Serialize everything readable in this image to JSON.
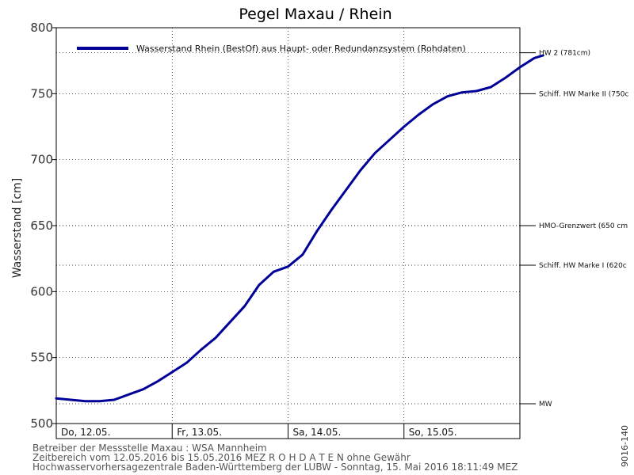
{
  "chart_data": {
    "type": "line",
    "title": "Pegel Maxau / Rhein",
    "ylabel": "Wasserstand [cm]",
    "xlabel": "",
    "ylim": [
      500,
      800
    ],
    "yticks": [
      500,
      550,
      600,
      650,
      700,
      750,
      800
    ],
    "xlim": [
      "2016-05-12T00:00",
      "2016-05-16T00:00"
    ],
    "grid": true,
    "legend_position": "top",
    "day_labels": [
      "Do, 12.05.",
      "Fr, 13.05.",
      "Sa, 14.05.",
      "So, 15.05."
    ],
    "series": [
      {
        "name": "Wasserstand Rhein (BestOf) aus Haupt- oder Redundanzsystem (Rohdaten)",
        "color": "#000099",
        "points": [
          [
            "2016-05-12T00:00",
            519
          ],
          [
            "2016-05-12T03:00",
            518
          ],
          [
            "2016-05-12T06:00",
            517
          ],
          [
            "2016-05-12T09:00",
            517
          ],
          [
            "2016-05-12T12:00",
            518
          ],
          [
            "2016-05-12T15:00",
            522
          ],
          [
            "2016-05-12T18:00",
            526
          ],
          [
            "2016-05-12T21:00",
            532
          ],
          [
            "2016-05-13T00:00",
            539
          ],
          [
            "2016-05-13T03:00",
            546
          ],
          [
            "2016-05-13T06:00",
            556
          ],
          [
            "2016-05-13T09:00",
            565
          ],
          [
            "2016-05-13T12:00",
            577
          ],
          [
            "2016-05-13T15:00",
            589
          ],
          [
            "2016-05-13T18:00",
            605
          ],
          [
            "2016-05-13T21:00",
            615
          ],
          [
            "2016-05-14T00:00",
            619
          ],
          [
            "2016-05-14T03:00",
            628
          ],
          [
            "2016-05-14T06:00",
            646
          ],
          [
            "2016-05-14T09:00",
            662
          ],
          [
            "2016-05-14T12:00",
            677
          ],
          [
            "2016-05-14T15:00",
            692
          ],
          [
            "2016-05-14T18:00",
            705
          ],
          [
            "2016-05-14T21:00",
            715
          ],
          [
            "2016-05-15T00:00",
            725
          ],
          [
            "2016-05-15T03:00",
            734
          ],
          [
            "2016-05-15T06:00",
            742
          ],
          [
            "2016-05-15T09:00",
            748
          ],
          [
            "2016-05-15T12:00",
            751
          ],
          [
            "2016-05-15T15:00",
            752
          ],
          [
            "2016-05-15T18:00",
            755
          ],
          [
            "2016-05-15T21:00",
            762
          ],
          [
            "2016-05-16T00:00",
            770
          ],
          [
            "2016-05-16T03:00",
            777
          ],
          [
            "2016-05-16T04:48",
            779
          ]
        ]
      }
    ],
    "markers": [
      {
        "label": "HW 2 (781cm)",
        "value": 781
      },
      {
        "label": "Schiff. HW Marke II (750c",
        "value": 750
      },
      {
        "label": "HMO-Grenzwert (650 cm",
        "value": 650
      },
      {
        "label": "Schiff. HW Marke I (620c",
        "value": 620
      },
      {
        "label": "MW",
        "value": 515
      }
    ]
  },
  "footer": {
    "line1": "Betreiber der Messstelle Maxau : WSA Mannheim",
    "line2": "Zeitbereich vom 12.05.2016 bis 15.05.2016    MEZ    R O H D A T E N ohne Gewähr",
    "line3": "Hochwasservorhersagezentrale Baden-Württemberg der LUBW - Sonntag, 15. Mai 2016 18:11:49 MEZ"
  },
  "side_code": "9016-140"
}
